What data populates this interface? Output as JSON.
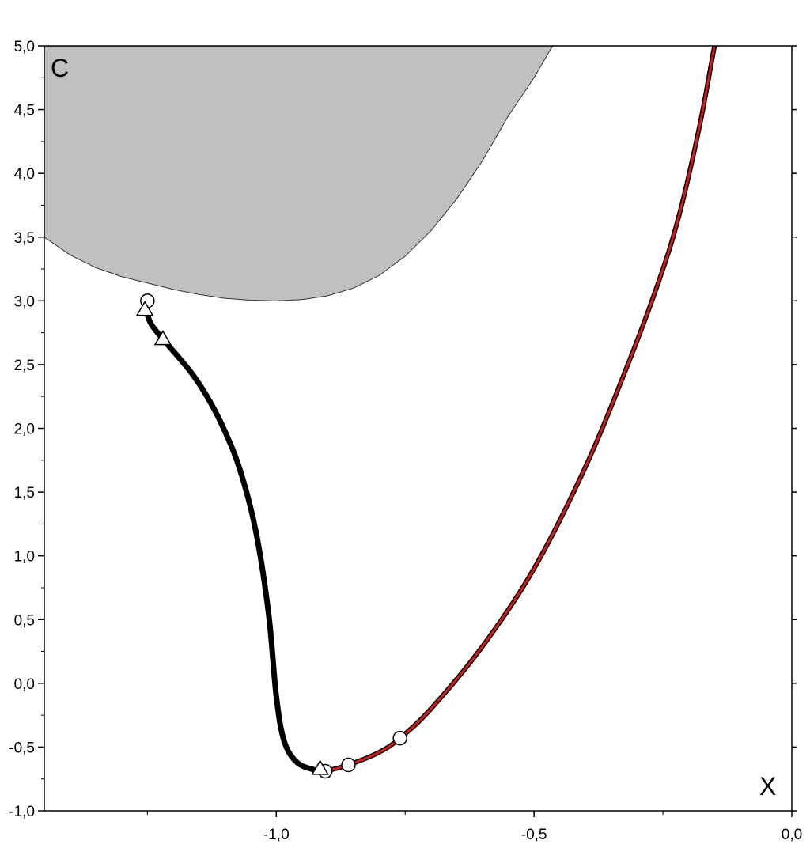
{
  "chart_data": {
    "type": "line",
    "panel_label": "C",
    "xlabel": "X",
    "ylabel": "",
    "xlim": [
      -1.45,
      0.0
    ],
    "ylim": [
      -1.0,
      5.0
    ],
    "x_ticks": [
      -1.0,
      -0.5,
      0.0
    ],
    "x_tick_labels": [
      "-1,0",
      "-0,5",
      "0,0"
    ],
    "y_ticks": [
      -1.0,
      -0.5,
      0.0,
      0.5,
      1.0,
      1.5,
      2.0,
      2.5,
      3.0,
      3.5,
      4.0,
      4.5,
      5.0
    ],
    "y_tick_labels": [
      "-1,0",
      "-0,5",
      "0,0",
      "0,5",
      "1,0",
      "1,5",
      "2,0",
      "2,5",
      "3,0",
      "3,5",
      "4,0",
      "4,5",
      "5,0"
    ],
    "grid": false,
    "colors": {
      "shaded": "#c0c0c0",
      "black_curve": "#000000",
      "red_curve": "#d11a1a",
      "marker_fill": "#ffffff"
    },
    "shaded_region": {
      "boundary": [
        {
          "x": -1.45,
          "y": 3.5
        },
        {
          "x": -1.4,
          "y": 3.36
        },
        {
          "x": -1.35,
          "y": 3.26
        },
        {
          "x": -1.3,
          "y": 3.19
        },
        {
          "x": -1.25,
          "y": 3.14
        },
        {
          "x": -1.2,
          "y": 3.09
        },
        {
          "x": -1.15,
          "y": 3.05
        },
        {
          "x": -1.1,
          "y": 3.02
        },
        {
          "x": -1.05,
          "y": 3.005
        },
        {
          "x": -1.0,
          "y": 3.0
        },
        {
          "x": -0.95,
          "y": 3.01
        },
        {
          "x": -0.9,
          "y": 3.04
        },
        {
          "x": -0.85,
          "y": 3.1
        },
        {
          "x": -0.8,
          "y": 3.2
        },
        {
          "x": -0.75,
          "y": 3.35
        },
        {
          "x": -0.7,
          "y": 3.55
        },
        {
          "x": -0.65,
          "y": 3.8
        },
        {
          "x": -0.6,
          "y": 4.1
        },
        {
          "x": -0.55,
          "y": 4.45
        },
        {
          "x": -0.5,
          "y": 4.75
        },
        {
          "x": -0.464,
          "y": 5.0
        }
      ]
    },
    "series": [
      {
        "values": [
          {
            "x": -1.253,
            "y": 2.93
          },
          {
            "x": -1.243,
            "y": 2.82
          },
          {
            "x": -1.22,
            "y": 2.7
          },
          {
            "x": -1.19,
            "y": 2.56
          },
          {
            "x": -1.16,
            "y": 2.41
          },
          {
            "x": -1.13,
            "y": 2.22
          },
          {
            "x": -1.1,
            "y": 1.98
          },
          {
            "x": -1.07,
            "y": 1.67
          },
          {
            "x": -1.04,
            "y": 1.2
          },
          {
            "x": -1.015,
            "y": 0.55
          },
          {
            "x": -1.0,
            "y": -0.1
          },
          {
            "x": -0.985,
            "y": -0.45
          },
          {
            "x": -0.96,
            "y": -0.62
          },
          {
            "x": -0.925,
            "y": -0.68
          },
          {
            "x": -0.905,
            "y": -0.69
          }
        ]
      },
      {
        "values": [
          {
            "x": -0.905,
            "y": -0.69
          },
          {
            "x": -0.86,
            "y": -0.64
          },
          {
            "x": -0.8,
            "y": -0.54
          },
          {
            "x": -0.76,
            "y": -0.43
          },
          {
            "x": -0.7,
            "y": -0.2
          },
          {
            "x": -0.6,
            "y": 0.29
          },
          {
            "x": -0.5,
            "y": 0.9
          },
          {
            "x": -0.4,
            "y": 1.7
          },
          {
            "x": -0.32,
            "y": 2.48
          },
          {
            "x": -0.26,
            "y": 3.13
          },
          {
            "x": -0.22,
            "y": 3.65
          },
          {
            "x": -0.18,
            "y": 4.35
          },
          {
            "x": -0.15,
            "y": 5.0
          }
        ]
      }
    ],
    "circle_markers": [
      {
        "x": -1.25,
        "y": 3.0
      },
      {
        "x": -0.905,
        "y": -0.69
      },
      {
        "x": -0.86,
        "y": -0.64
      },
      {
        "x": -0.76,
        "y": -0.43
      }
    ],
    "triangle_markers": [
      {
        "x": -1.255,
        "y": 2.93
      },
      {
        "x": -1.22,
        "y": 2.7
      },
      {
        "x": -0.915,
        "y": -0.67
      }
    ]
  }
}
